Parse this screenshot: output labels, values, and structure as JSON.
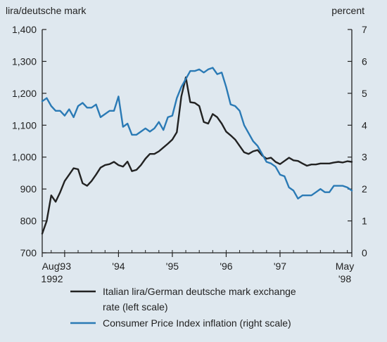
{
  "chart_data": {
    "type": "line",
    "left_axis_title": "lira/deutsche mark",
    "right_axis_title": "percent",
    "y_left": {
      "min": 700,
      "max": 1400,
      "ticks": [
        "700",
        "800",
        "900",
        "1,000",
        "1,100",
        "1,200",
        "1,300",
        "1,400"
      ]
    },
    "y_right": {
      "min": 0,
      "max": 7,
      "ticks": [
        "0",
        "1",
        "2",
        "3",
        "4",
        "5",
        "6",
        "7"
      ]
    },
    "x_range": [
      "1992-08",
      "1998-05"
    ],
    "x_ticks": [
      {
        "date": "1992-08",
        "label": "Aug.",
        "label2": "1992"
      },
      {
        "date": "1993-01",
        "label": "'93",
        "label2": ""
      },
      {
        "date": "1994-01",
        "label": "'94",
        "label2": ""
      },
      {
        "date": "1995-01",
        "label": "'95",
        "label2": ""
      },
      {
        "date": "1996-01",
        "label": "'96",
        "label2": ""
      },
      {
        "date": "1997-01",
        "label": "'97",
        "label2": ""
      },
      {
        "date": "1998-05",
        "label": "May",
        "label2": "'98"
      }
    ],
    "series": [
      {
        "name": "Italian lira/German deutsche mark exchange rate (left scale)",
        "axis": "left",
        "color": "#222222",
        "values": [
          [
            "1992-08",
            760
          ],
          [
            "1992-09",
            800
          ],
          [
            "1992-10",
            880
          ],
          [
            "1992-11",
            860
          ],
          [
            "1992-12",
            890
          ],
          [
            "1993-01",
            925
          ],
          [
            "1993-02",
            945
          ],
          [
            "1993-03",
            965
          ],
          [
            "1993-04",
            962
          ],
          [
            "1993-05",
            918
          ],
          [
            "1993-06",
            910
          ],
          [
            "1993-07",
            925
          ],
          [
            "1993-08",
            945
          ],
          [
            "1993-09",
            967
          ],
          [
            "1993-10",
            975
          ],
          [
            "1993-11",
            978
          ],
          [
            "1993-12",
            985
          ],
          [
            "1994-01",
            975
          ],
          [
            "1994-02",
            970
          ],
          [
            "1994-03",
            986
          ],
          [
            "1994-04",
            956
          ],
          [
            "1994-05",
            960
          ],
          [
            "1994-06",
            975
          ],
          [
            "1994-07",
            995
          ],
          [
            "1994-08",
            1010
          ],
          [
            "1994-09",
            1010
          ],
          [
            "1994-10",
            1018
          ],
          [
            "1994-11",
            1030
          ],
          [
            "1994-12",
            1042
          ],
          [
            "1995-01",
            1055
          ],
          [
            "1995-02",
            1078
          ],
          [
            "1995-03",
            1190
          ],
          [
            "1995-04",
            1250
          ],
          [
            "1995-05",
            1172
          ],
          [
            "1995-06",
            1170
          ],
          [
            "1995-07",
            1160
          ],
          [
            "1995-08",
            1110
          ],
          [
            "1995-09",
            1105
          ],
          [
            "1995-10",
            1135
          ],
          [
            "1995-11",
            1125
          ],
          [
            "1995-12",
            1105
          ],
          [
            "1996-01",
            1080
          ],
          [
            "1996-02",
            1068
          ],
          [
            "1996-03",
            1055
          ],
          [
            "1996-04",
            1035
          ],
          [
            "1996-05",
            1015
          ],
          [
            "1996-06",
            1010
          ],
          [
            "1996-07",
            1018
          ],
          [
            "1996-08",
            1022
          ],
          [
            "1996-09",
            1005
          ],
          [
            "1996-10",
            995
          ],
          [
            "1996-11",
            998
          ],
          [
            "1996-12",
            985
          ],
          [
            "1997-01",
            978
          ],
          [
            "1997-02",
            988
          ],
          [
            "1997-03",
            998
          ],
          [
            "1997-04",
            990
          ],
          [
            "1997-05",
            988
          ],
          [
            "1997-06",
            980
          ],
          [
            "1997-07",
            973
          ],
          [
            "1997-08",
            977
          ],
          [
            "1997-09",
            977
          ],
          [
            "1997-10",
            980
          ],
          [
            "1997-11",
            980
          ],
          [
            "1997-12",
            980
          ],
          [
            "1998-01",
            983
          ],
          [
            "1998-02",
            985
          ],
          [
            "1998-03",
            983
          ],
          [
            "1998-04",
            987
          ],
          [
            "1998-05",
            985
          ]
        ]
      },
      {
        "name": "Consumer Price Index inflation (right scale)",
        "axis": "right",
        "color": "#2a7ab5",
        "values": [
          [
            "1992-08",
            4.75
          ],
          [
            "1992-09",
            4.85
          ],
          [
            "1992-10",
            4.6
          ],
          [
            "1992-11",
            4.45
          ],
          [
            "1992-12",
            4.45
          ],
          [
            "1993-01",
            4.3
          ],
          [
            "1993-02",
            4.5
          ],
          [
            "1993-03",
            4.25
          ],
          [
            "1993-04",
            4.6
          ],
          [
            "1993-05",
            4.7
          ],
          [
            "1993-06",
            4.55
          ],
          [
            "1993-07",
            4.55
          ],
          [
            "1993-08",
            4.65
          ],
          [
            "1993-09",
            4.25
          ],
          [
            "1993-10",
            4.35
          ],
          [
            "1993-11",
            4.45
          ],
          [
            "1993-12",
            4.45
          ],
          [
            "1994-01",
            4.9
          ],
          [
            "1994-02",
            3.95
          ],
          [
            "1994-03",
            4.05
          ],
          [
            "1994-04",
            3.7
          ],
          [
            "1994-05",
            3.7
          ],
          [
            "1994-06",
            3.8
          ],
          [
            "1994-07",
            3.9
          ],
          [
            "1994-08",
            3.8
          ],
          [
            "1994-09",
            3.9
          ],
          [
            "1994-10",
            4.1
          ],
          [
            "1994-11",
            3.85
          ],
          [
            "1994-12",
            4.25
          ],
          [
            "1995-01",
            4.3
          ],
          [
            "1995-02",
            4.85
          ],
          [
            "1995-03",
            5.2
          ],
          [
            "1995-04",
            5.45
          ],
          [
            "1995-05",
            5.7
          ],
          [
            "1995-06",
            5.7
          ],
          [
            "1995-07",
            5.75
          ],
          [
            "1995-08",
            5.65
          ],
          [
            "1995-09",
            5.75
          ],
          [
            "1995-10",
            5.8
          ],
          [
            "1995-11",
            5.6
          ],
          [
            "1995-12",
            5.65
          ],
          [
            "1996-01",
            5.2
          ],
          [
            "1996-02",
            4.65
          ],
          [
            "1996-03",
            4.6
          ],
          [
            "1996-04",
            4.45
          ],
          [
            "1996-05",
            4.0
          ],
          [
            "1996-06",
            3.75
          ],
          [
            "1996-07",
            3.5
          ],
          [
            "1996-08",
            3.35
          ],
          [
            "1996-09",
            3.1
          ],
          [
            "1996-10",
            2.85
          ],
          [
            "1996-11",
            2.8
          ],
          [
            "1996-12",
            2.7
          ],
          [
            "1997-01",
            2.45
          ],
          [
            "1997-02",
            2.4
          ],
          [
            "1997-03",
            2.05
          ],
          [
            "1997-04",
            1.95
          ],
          [
            "1997-05",
            1.7
          ],
          [
            "1997-06",
            1.8
          ],
          [
            "1997-07",
            1.8
          ],
          [
            "1997-08",
            1.8
          ],
          [
            "1997-09",
            1.9
          ],
          [
            "1997-10",
            2.0
          ],
          [
            "1997-11",
            1.9
          ],
          [
            "1997-12",
            1.9
          ],
          [
            "1998-01",
            2.1
          ],
          [
            "1998-02",
            2.1
          ],
          [
            "1998-03",
            2.1
          ],
          [
            "1998-04",
            2.05
          ],
          [
            "1998-05",
            1.95
          ]
        ]
      }
    ],
    "legend": [
      {
        "line1": "Italian lira/German deutsche mark exchange",
        "line2": "rate (left scale)",
        "color": "#222222"
      },
      {
        "line1": "Consumer Price Index inflation (right scale)",
        "line2": "",
        "color": "#2a7ab5"
      }
    ],
    "legend_position": "bottom",
    "grid": false
  }
}
